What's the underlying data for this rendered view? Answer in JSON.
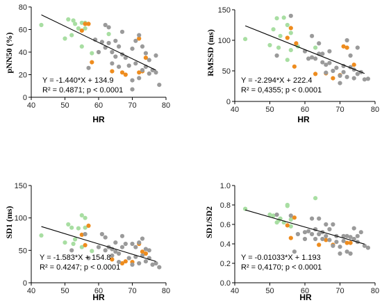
{
  "colors": {
    "green": "#a8dea2",
    "orange": "#ee8c1e",
    "gray": "#9a9a9a"
  },
  "chart_data": [
    {
      "type": "scatter",
      "xlabel": "HR",
      "ylabel": "pNN50 (%)",
      "xlim": [
        40,
        80
      ],
      "ylim": [
        0,
        80
      ],
      "xticks": [
        40,
        50,
        60,
        70,
        80
      ],
      "yticks": [
        0,
        20,
        40,
        60,
        80
      ],
      "equation": "Y = -1.440*X + 134.9",
      "stats": "R² = 0.4871; p < 0.0001",
      "fit": {
        "slope": -1.44,
        "intercept": 134.9,
        "x": [
          43,
          77
        ]
      },
      "series": [
        {
          "color": "green",
          "x": [
            43,
            50,
            51,
            52,
            52.5,
            53,
            54,
            55,
            55,
            56,
            56,
            58,
            63
          ],
          "y": [
            64,
            52,
            69,
            55,
            68,
            65,
            61,
            66,
            45,
            61,
            66,
            39,
            56
          ]
        },
        {
          "color": "orange",
          "x": [
            55,
            56,
            57,
            58,
            64,
            67,
            68,
            72,
            72,
            73,
            74
          ],
          "y": [
            59,
            65,
            65,
            31,
            23,
            22,
            20,
            22,
            52,
            23,
            35
          ]
        },
        {
          "color": "gray",
          "x": [
            57,
            59,
            60,
            61,
            62,
            62,
            63,
            63,
            64,
            64,
            65,
            65,
            66,
            66,
            67,
            67,
            68,
            69,
            70,
            70,
            70,
            71,
            71,
            72,
            72,
            73,
            73,
            74,
            74,
            75,
            75,
            76,
            77,
            77,
            78
          ],
          "y": [
            26,
            51,
            40,
            49,
            64,
            44,
            48,
            62,
            40,
            30,
            36,
            50,
            45,
            27,
            58,
            38,
            35,
            28,
            43,
            15,
            7,
            50,
            30,
            55,
            17,
            45,
            24,
            27,
            39,
            21,
            33,
            24,
            37,
            22,
            11
          ]
        }
      ]
    },
    {
      "type": "scatter",
      "xlabel": "HR",
      "ylabel": "RMSSD (ms)",
      "xlim": [
        40,
        80
      ],
      "ylim": [
        0,
        150
      ],
      "xticks": [
        40,
        50,
        60,
        70,
        80
      ],
      "yticks": [
        0,
        50,
        100,
        150
      ],
      "equation": "Y = -2.294*X + 222.4",
      "stats": "R² = 0,4355; p < 0.0001",
      "fit": {
        "slope": -2.294,
        "intercept": 222.4,
        "x": [
          43,
          77
        ]
      },
      "series": [
        {
          "color": "green",
          "x": [
            43,
            50,
            51,
            52,
            52.5,
            53,
            54,
            55,
            55,
            56,
            56,
            58,
            63
          ],
          "y": [
            102,
            92,
            118,
            136,
            88,
            107,
            137,
            68,
            125,
            84,
            112,
            90,
            88
          ]
        },
        {
          "color": "orange",
          "x": [
            55,
            56,
            57,
            57.5,
            63,
            66,
            68,
            70,
            71,
            72,
            74
          ],
          "y": [
            104,
            120,
            57,
            95,
            45,
            46,
            38,
            43,
            90,
            88,
            60
          ]
        },
        {
          "color": "gray",
          "x": [
            52,
            56,
            60,
            61,
            62,
            62,
            63,
            64,
            64,
            65,
            65,
            66,
            66,
            67,
            67,
            68,
            69,
            70,
            70,
            71,
            71,
            72,
            72,
            73,
            73,
            74,
            74,
            75,
            75,
            76,
            77,
            78
          ],
          "y": [
            75,
            140,
            82,
            70,
            72,
            107,
            70,
            95,
            78,
            64,
            78,
            47,
            60,
            63,
            82,
            50,
            55,
            42,
            30,
            58,
            48,
            100,
            40,
            56,
            75,
            52,
            38,
            45,
            88,
            48,
            36,
            37
          ]
        }
      ]
    },
    {
      "type": "scatter",
      "xlabel": "HR",
      "ylabel": "SD1 (ms)",
      "xlim": [
        40,
        80
      ],
      "ylim": [
        0,
        150
      ],
      "xticks": [
        40,
        50,
        60,
        70,
        80
      ],
      "yticks": [
        0,
        50,
        100,
        150
      ],
      "equation": "Y = -1.583*X + 154.8",
      "stats": "R² = 0.4247; p < 0.0001",
      "fit": {
        "slope": -1.583,
        "intercept": 154.8,
        "x": [
          43,
          77
        ]
      },
      "series": [
        {
          "color": "green",
          "x": [
            43,
            50,
            51,
            52,
            52.5,
            53,
            54,
            55,
            55,
            56,
            56,
            58
          ],
          "y": [
            73,
            62,
            90,
            85,
            60,
            67,
            84,
            104,
            55,
            85,
            100,
            49
          ]
        },
        {
          "color": "orange",
          "x": [
            55,
            56,
            57,
            64,
            67,
            68,
            70,
            72,
            73,
            74
          ],
          "y": [
            74,
            58,
            88,
            36,
            30,
            33,
            32,
            60,
            48,
            45
          ]
        },
        {
          "color": "gray",
          "x": [
            52,
            56,
            57,
            60,
            61,
            62,
            62,
            63,
            64,
            64,
            65,
            65,
            66,
            66,
            67,
            67,
            68,
            69,
            70,
            70,
            71,
            71,
            72,
            72,
            73,
            73,
            74,
            74,
            75,
            75,
            76,
            77,
            78
          ],
          "y": [
            50,
            75,
            38,
            55,
            75,
            50,
            70,
            55,
            52,
            42,
            48,
            62,
            45,
            32,
            72,
            55,
            60,
            38,
            60,
            28,
            55,
            40,
            62,
            30,
            68,
            42,
            33,
            52,
            38,
            50,
            28,
            30,
            24
          ]
        }
      ]
    },
    {
      "type": "scatter",
      "xlabel": "HR",
      "ylabel": "SD1/SD2",
      "xlim": [
        40,
        80
      ],
      "ylim": [
        0,
        1.0
      ],
      "xticks": [
        40,
        50,
        60,
        70,
        80
      ],
      "yticks": [
        0.0,
        0.2,
        0.4,
        0.6,
        0.8,
        1.0
      ],
      "equation": "Y = -0.01033*X + 1.193",
      "stats": "R² = 0,4170; p < 0.0001",
      "fit": {
        "slope": -0.01033,
        "intercept": 1.193,
        "x": [
          43,
          77
        ]
      },
      "series": [
        {
          "color": "green",
          "x": [
            43,
            50,
            51,
            52,
            52.5,
            53,
            54,
            55,
            55,
            56,
            56,
            63
          ],
          "y": [
            0.76,
            0.7,
            0.69,
            0.62,
            0.64,
            0.66,
            0.62,
            0.8,
            0.79,
            0.58,
            0.65,
            0.87
          ]
        },
        {
          "color": "orange",
          "x": [
            55,
            56,
            57,
            64,
            66,
            68,
            72,
            73
          ],
          "y": [
            0.59,
            0.46,
            0.67,
            0.39,
            0.44,
            0.39,
            0.41,
            0.41
          ]
        },
        {
          "color": "gray",
          "x": [
            52,
            56,
            57,
            58,
            60,
            60,
            61,
            62,
            62,
            63,
            63,
            64,
            64,
            65,
            65,
            66,
            66,
            67,
            67,
            68,
            68,
            69,
            69,
            70,
            70,
            71,
            71,
            72,
            72,
            73,
            73,
            74,
            74,
            75,
            75,
            76,
            77,
            78
          ],
          "y": [
            0.7,
            0.69,
            0.32,
            0.5,
            0.52,
            0.45,
            0.53,
            0.66,
            0.5,
            0.55,
            0.45,
            0.66,
            0.5,
            0.45,
            0.52,
            0.6,
            0.48,
            0.55,
            0.44,
            0.6,
            0.38,
            0.48,
            0.42,
            0.37,
            0.3,
            0.48,
            0.43,
            0.48,
            0.32,
            0.47,
            0.3,
            0.45,
            0.56,
            0.48,
            0.42,
            0.52,
            0.38,
            0.36
          ]
        }
      ]
    }
  ]
}
